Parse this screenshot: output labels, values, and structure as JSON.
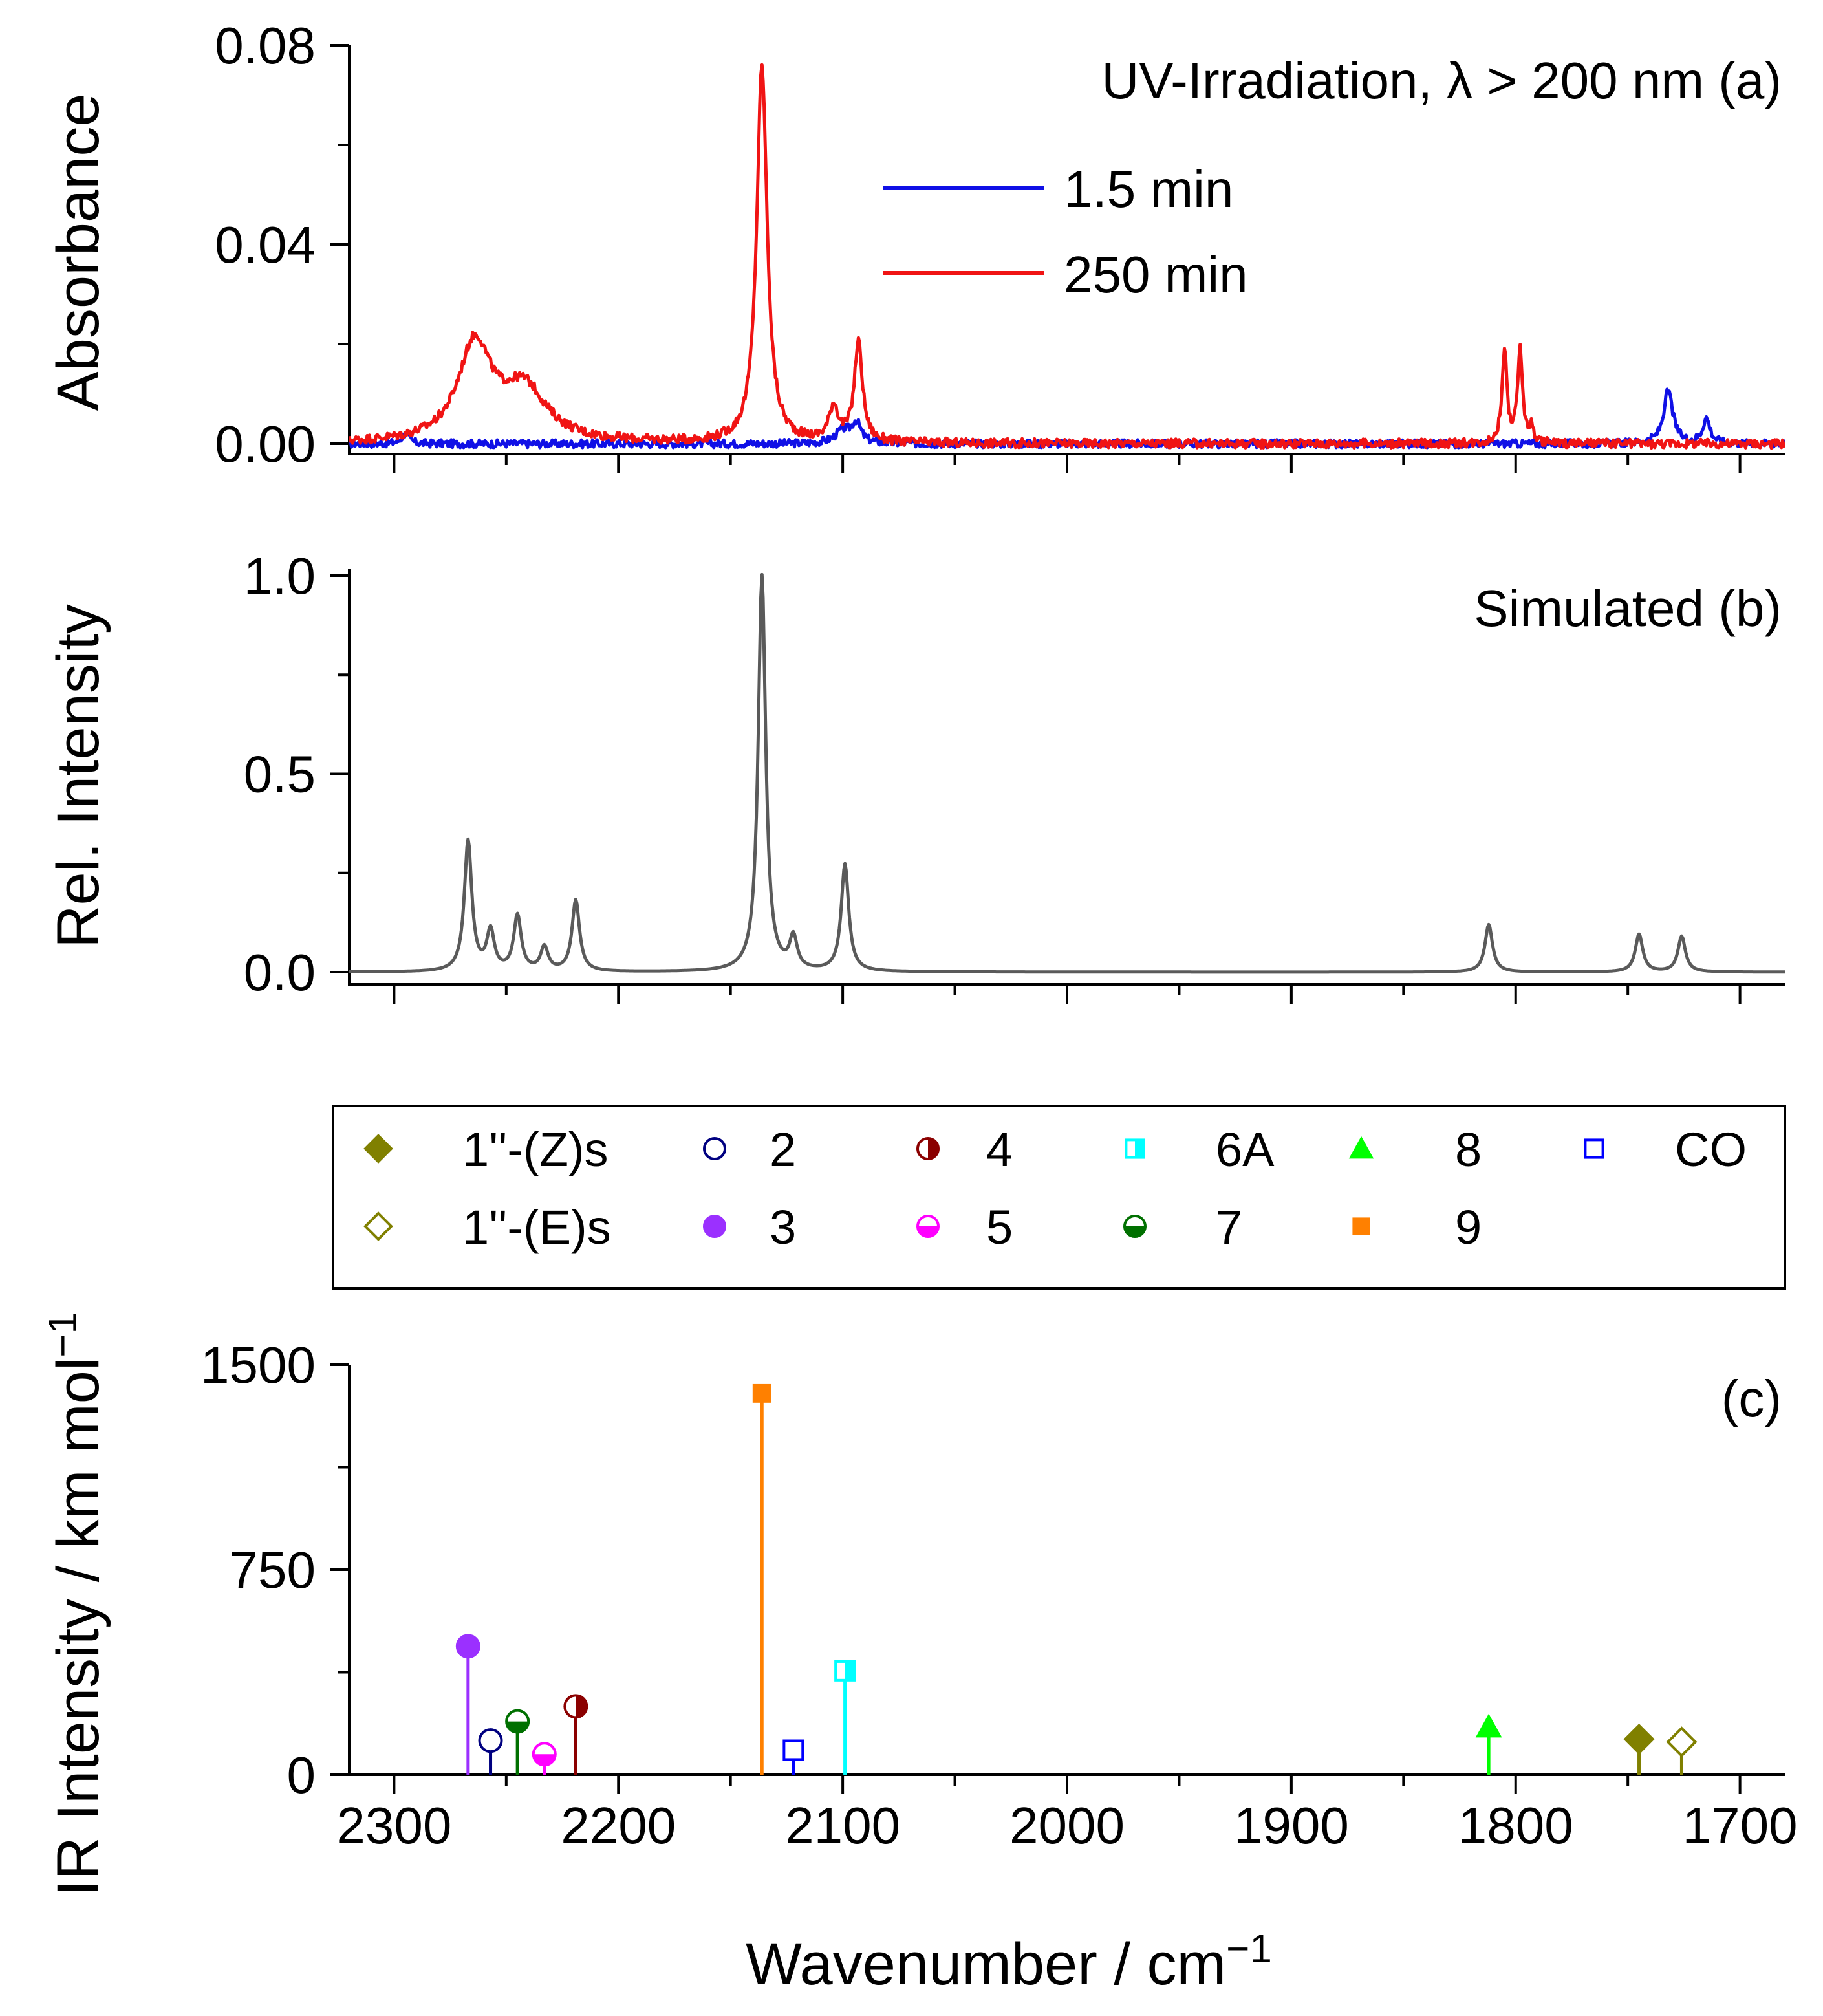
{
  "chart_data": [
    {
      "panel": "a",
      "type": "line",
      "annotation": "UV-Irradiation, λ > 200 nm (a)",
      "ylabel": "Absorbance",
      "xlabel": "",
      "xlim": [
        2320,
        1680
      ],
      "ylim": [
        0,
        0.08
      ],
      "yticks": [
        "0.00",
        "0.04",
        "0.08"
      ],
      "series": [
        {
          "name": "1.5 min",
          "color": "#1010e6",
          "baseline": 0.0,
          "noise": 0.0008,
          "peaks": [
            {
              "center": 2295,
              "height": 0.002,
              "width": 2
            },
            {
              "center": 2100,
              "height": 0.0025,
              "width": 4
            },
            {
              "center": 2094,
              "height": 0.004,
              "width": 2.5
            },
            {
              "center": 1732,
              "height": 0.0105,
              "width": 2.5
            },
            {
              "center": 1715,
              "height": 0.005,
              "width": 2
            }
          ]
        },
        {
          "name": "250 min",
          "color": "#f01414",
          "baseline": 0.0,
          "noise": 0.0009,
          "peaks": [
            {
              "center": 2264,
              "height": 0.0195,
              "width": 9
            },
            {
              "center": 2242,
              "height": 0.0105,
              "width": 12
            },
            {
              "center": 2136,
              "height": 0.0755,
              "width": 2.8
            },
            {
              "center": 2104,
              "height": 0.007,
              "width": 2.5
            },
            {
              "center": 2093,
              "height": 0.02,
              "width": 2.2
            },
            {
              "center": 1805,
              "height": 0.019,
              "width": 1.3
            },
            {
              "center": 1798,
              "height": 0.019,
              "width": 1.3
            },
            {
              "center": 1793,
              "height": 0.003,
              "width": 1
            }
          ]
        }
      ]
    },
    {
      "panel": "b",
      "type": "line",
      "annotation": "Simulated (b)",
      "ylabel": "Rel. Intensity",
      "xlabel": "",
      "xlim": [
        2320,
        1680
      ],
      "ylim": [
        0,
        1.0
      ],
      "yticks": [
        "0.0",
        "0.5",
        "1.0"
      ],
      "series": [
        {
          "name": "simulated spectrum",
          "color": "#5a5a5a",
          "peaks": [
            {
              "center": 2267,
              "height": 0.33,
              "width": 2
            },
            {
              "center": 2257,
              "height": 0.1,
              "width": 2
            },
            {
              "center": 2245,
              "height": 0.14,
              "width": 2
            },
            {
              "center": 2233,
              "height": 0.06,
              "width": 2
            },
            {
              "center": 2219,
              "height": 0.18,
              "width": 2
            },
            {
              "center": 2136,
              "height": 1.0,
              "width": 2
            },
            {
              "center": 2122,
              "height": 0.08,
              "width": 2
            },
            {
              "center": 2099,
              "height": 0.27,
              "width": 2
            },
            {
              "center": 1812,
              "height": 0.12,
              "width": 2
            },
            {
              "center": 1745,
              "height": 0.095,
              "width": 2
            },
            {
              "center": 1726,
              "height": 0.09,
              "width": 2
            }
          ]
        }
      ]
    },
    {
      "panel": "c",
      "type": "scatter",
      "subtype": "stick",
      "annotation": "(c)",
      "ylabel": "IR Intensity / km mol",
      "ylabel_sup": "−1",
      "xlabel": "Wavenumber / cm",
      "xlabel_sup": "−1",
      "xlim": [
        2320,
        1680
      ],
      "ylim": [
        0,
        1500
      ],
      "yticks": [
        "0",
        "750",
        "1500"
      ],
      "xticks": [
        "2300",
        "2200",
        "2100",
        "2000",
        "1900",
        "1800",
        "1700"
      ],
      "series": [
        {
          "name": "1''-(Z)s",
          "marker": "diamond",
          "fill": "full",
          "color": "#808000",
          "points": [
            {
              "x": 1745,
              "y": 130
            }
          ]
        },
        {
          "name": "1''-(E)s",
          "marker": "diamond",
          "fill": "none",
          "color": "#808000",
          "points": [
            {
              "x": 1726,
              "y": 120
            }
          ]
        },
        {
          "name": "2",
          "marker": "circle",
          "fill": "none",
          "color": "#000080",
          "points": [
            {
              "x": 2257,
              "y": 125
            }
          ]
        },
        {
          "name": "3",
          "marker": "circle",
          "fill": "full",
          "color": "#9b30ff",
          "points": [
            {
              "x": 2267,
              "y": 470
            }
          ]
        },
        {
          "name": "4",
          "marker": "circle",
          "fill": "right",
          "color": "#8b0000",
          "points": [
            {
              "x": 2219,
              "y": 250
            }
          ]
        },
        {
          "name": "5",
          "marker": "circle",
          "fill": "bottom",
          "color": "#ff00ff",
          "points": [
            {
              "x": 2233,
              "y": 75
            }
          ]
        },
        {
          "name": "6A",
          "marker": "square",
          "fill": "right",
          "color": "#00ffff",
          "points": [
            {
              "x": 2099,
              "y": 380
            }
          ]
        },
        {
          "name": "7",
          "marker": "circle",
          "fill": "bottom",
          "color": "#007000",
          "points": [
            {
              "x": 2245,
              "y": 195
            }
          ]
        },
        {
          "name": "8",
          "marker": "triangle",
          "fill": "full",
          "color": "#00ff00",
          "points": [
            {
              "x": 1812,
              "y": 175
            }
          ]
        },
        {
          "name": "9",
          "marker": "square",
          "fill": "full",
          "color": "#ff8000",
          "points": [
            {
              "x": 2136,
              "y": 1395
            }
          ]
        },
        {
          "name": "CO",
          "marker": "square",
          "fill": "none",
          "color": "#0000ff",
          "points": [
            {
              "x": 2122,
              "y": 90
            }
          ]
        }
      ]
    }
  ],
  "legend_a": [
    "1.5 min",
    "250 min"
  ],
  "legend_c": [
    [
      "1''-(Z)s",
      "2",
      "4",
      "6A",
      "8",
      "CO"
    ],
    [
      "1''-(E)s",
      "3",
      "5",
      "7",
      "9"
    ]
  ]
}
